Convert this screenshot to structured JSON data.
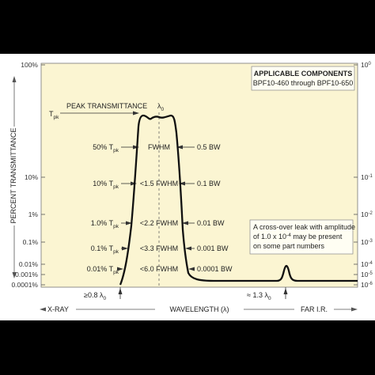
{
  "chart_data": {
    "type": "line",
    "title": "",
    "colors": {
      "frame_bg": "#ffffff",
      "plot_bg": "#fbf5d2",
      "curve": "#111111",
      "page_bg": "#000000"
    },
    "y_left_ticks": [
      "100%",
      "10%",
      "1%",
      "0.1%",
      "0.01%",
      "0.001%",
      "0.0001%"
    ],
    "y_right_ticks": [
      {
        "base": "10",
        "exp": "0"
      },
      {
        "base": "10",
        "exp": "-1"
      },
      {
        "base": "10",
        "exp": "-2"
      },
      {
        "base": "10",
        "exp": "-3"
      },
      {
        "base": "10",
        "exp": "-4"
      },
      {
        "base": "10",
        "exp": "-5"
      },
      {
        "base": "10",
        "exp": "-6"
      }
    ],
    "ylabel": "PERCENT TRANSMITTANCE",
    "yscale": "log",
    "ylim": [
      0.0001,
      100
    ],
    "x_axis": {
      "label": "WAVELENGTH (λ)",
      "left_region": "X-RAY",
      "right_region": "FAR I.R.",
      "left_marker": "≥0.8 λ",
      "left_marker_sub": "0",
      "right_marker": "≈ 1.3 λ",
      "right_marker_sub": "0"
    },
    "peak": {
      "label": "PEAK TRANSMITTANCE",
      "tpk": "T",
      "tpk_sub": "pk",
      "center": "λ",
      "center_sub": "0"
    },
    "levels": [
      {
        "pct": "50% T",
        "sub": "pk",
        "width": "FWHM",
        "bw": "0.5 BW"
      },
      {
        "pct": "10% T",
        "sub": "pk",
        "width": "<1.5 FWHM",
        "bw": "0.1 BW"
      },
      {
        "pct": "1.0% T",
        "sub": "pk",
        "width": "<2.2 FWHM",
        "bw": "0.01 BW"
      },
      {
        "pct": "0.1% T",
        "sub": "pk",
        "width": "<3.3 FWHM",
        "bw": "0.001 BW"
      },
      {
        "pct": "0.01% T",
        "sub": "pk",
        "width": "<6.0 FWHM",
        "bw": "0.0001 BW"
      }
    ],
    "components_box": {
      "title": "APPLICABLE COMPONENTS",
      "text": "BPF10-460 through BPF10-650"
    },
    "leak_box": {
      "line1": "A cross-over leak with amplitude",
      "line2_pre": "of 1.0 x 10",
      "line2_exp": "-4",
      "line2_post": " may be present",
      "line3": "on some part numbers"
    }
  }
}
